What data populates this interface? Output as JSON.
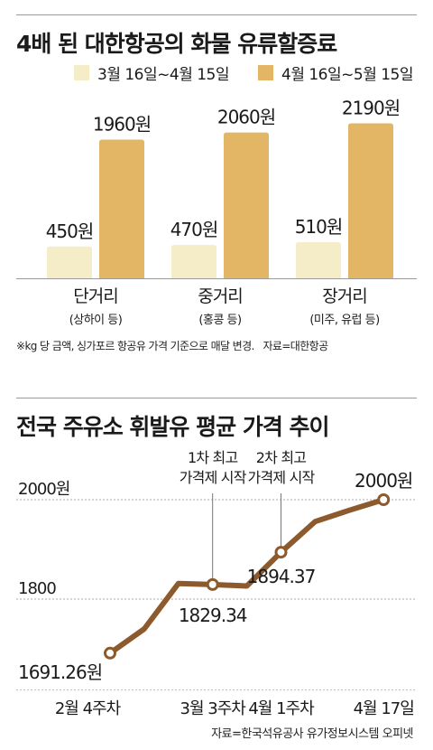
{
  "chart_data": [
    {
      "type": "bar",
      "title": "4배 된 대한항공의 화물 유류할증료",
      "categories": [
        "단거리",
        "중거리",
        "장거리"
      ],
      "category_sublabels": [
        "(상하이 등)",
        "(홍콩 등)",
        "(미주, 유럽 등)"
      ],
      "series": [
        {
          "name": "3월 16일~4월 15일",
          "values": [
            450,
            470,
            510
          ],
          "labels": [
            "450원",
            "470원",
            "510원"
          ],
          "color": "#f5ecc8"
        },
        {
          "name": "4월 16일~5월 15일",
          "values": [
            1960,
            2060,
            2190
          ],
          "labels": [
            "1960원",
            "2060원",
            "2190원"
          ],
          "color": "#e3b666"
        }
      ],
      "ylim": [
        0,
        2400
      ],
      "legend": "top",
      "grid": false,
      "note": "※kg 당 금액, 싱가포르 항공유 가격 기준으로 매달 변경.",
      "source": "자료=대한항공"
    },
    {
      "type": "line",
      "title": "전국 주유소 휘발유 평균 가격 추이",
      "x": [
        0,
        1,
        2,
        3,
        4,
        5,
        6,
        7,
        8
      ],
      "x_tick_labels": [
        "2월 4주차",
        "3월 3주차",
        "4월 1주차",
        "4월 17일"
      ],
      "x_tick_positions": [
        0,
        3,
        5,
        8
      ],
      "values": [
        1691.26,
        1740,
        1831.5,
        1829.34,
        1826.4,
        1894.37,
        1956,
        1978.8,
        2000
      ],
      "value_labels": [
        {
          "index": 0,
          "text": "1691.26원"
        },
        {
          "index": 3,
          "text": "1829.34"
        },
        {
          "index": 5,
          "text": "1894.37"
        },
        {
          "index": 8,
          "text": "2000원"
        }
      ],
      "y_tick_labels": [
        "2000원",
        "1800"
      ],
      "y_tick_values": [
        2000,
        1800
      ],
      "ylim": [
        1650,
        2020
      ],
      "grid": "dashed horizontal",
      "color": "#8c5a2c",
      "annotations": [
        {
          "index": 3,
          "text": [
            "1차 최고",
            "가격제 시작"
          ]
        },
        {
          "index": 5,
          "text": [
            "2차 최고",
            "가격제 시작"
          ]
        }
      ],
      "source": "자료=한국석유공사 유가정보시스템 오피넷"
    }
  ]
}
